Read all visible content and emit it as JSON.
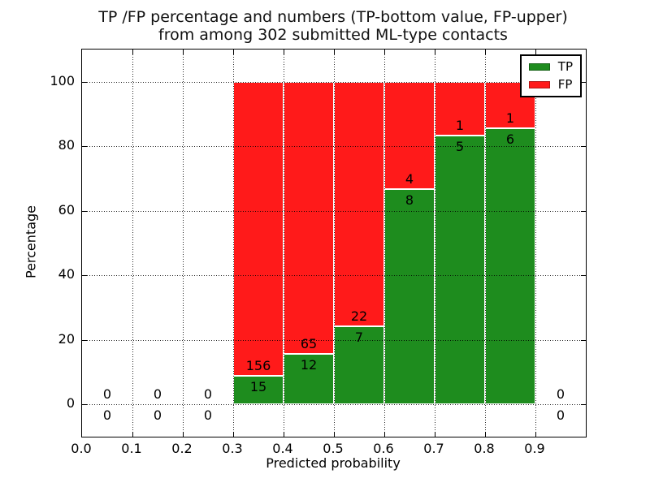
{
  "figure": {
    "title_line1": "TP /FP percentage and numbers (TP-bottom value, FP-upper)",
    "title_line2": "from among 302 submitted ML-type contacts"
  },
  "chart_data": {
    "type": "bar",
    "stacked": true,
    "title": "TP /FP percentage and numbers (TP-bottom value, FP-upper)\nfrom among 302 submitted ML-type contacts",
    "xlabel": "Predicted probability",
    "ylabel": "Percentage",
    "xlim": [
      0.0,
      1.0
    ],
    "ylim": [
      -10,
      110
    ],
    "xticks": [
      "0.0",
      "0.1",
      "0.2",
      "0.3",
      "0.4",
      "0.5",
      "0.6",
      "0.7",
      "0.8",
      "0.9"
    ],
    "yticks": [
      "0",
      "20",
      "40",
      "60",
      "80",
      "100"
    ],
    "grid": "dotted both axes, drawn above bars",
    "total_contacts": 302,
    "colors": {
      "tp": "#1e8c1e",
      "fp": "#ff1a1a",
      "grid": "#000000",
      "spine": "#000000"
    },
    "legend": {
      "position": "upper-right",
      "entries": [
        {
          "label": "TP",
          "color": "#1e8c1e"
        },
        {
          "label": "FP",
          "color": "#ff1a1a"
        }
      ]
    },
    "bins": [
      {
        "x_start": 0.0,
        "x_end": 0.1,
        "tp": 0,
        "fp": 0
      },
      {
        "x_start": 0.1,
        "x_end": 0.2,
        "tp": 0,
        "fp": 0
      },
      {
        "x_start": 0.2,
        "x_end": 0.3,
        "tp": 0,
        "fp": 0
      },
      {
        "x_start": 0.3,
        "x_end": 0.4,
        "tp": 15,
        "fp": 156
      },
      {
        "x_start": 0.4,
        "x_end": 0.5,
        "tp": 12,
        "fp": 65
      },
      {
        "x_start": 0.5,
        "x_end": 0.6,
        "tp": 7,
        "fp": 22
      },
      {
        "x_start": 0.6,
        "x_end": 0.7,
        "tp": 8,
        "fp": 4
      },
      {
        "x_start": 0.7,
        "x_end": 0.8,
        "tp": 5,
        "fp": 1
      },
      {
        "x_start": 0.8,
        "x_end": 0.9,
        "tp": 6,
        "fp": 1
      },
      {
        "x_start": 0.9,
        "x_end": 1.0,
        "tp": 0,
        "fp": 0
      }
    ]
  }
}
